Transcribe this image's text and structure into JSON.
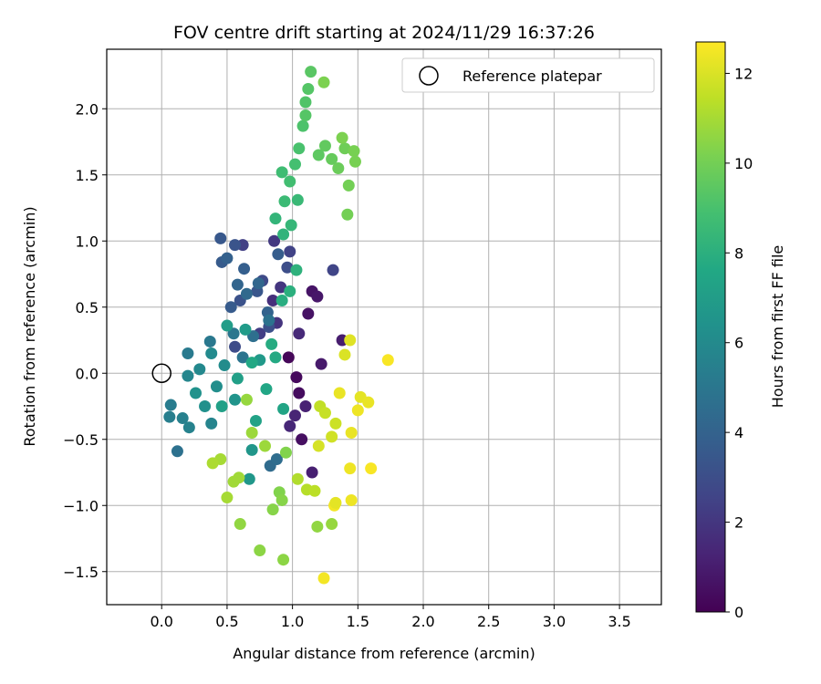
{
  "chart_data": {
    "type": "scatter",
    "title": "FOV centre drift starting at 2024/11/29 16:37:26",
    "xlabel": "Angular distance from reference (arcmin)",
    "ylabel": "Rotation from reference (arcmin)",
    "xlim": [
      -0.42,
      3.82
    ],
    "ylim": [
      -1.75,
      2.45
    ],
    "xticks": [
      0.0,
      0.5,
      1.0,
      1.5,
      2.0,
      2.5,
      3.0,
      3.5
    ],
    "xtick_labels": [
      "0.0",
      "0.5",
      "1.0",
      "1.5",
      "2.0",
      "2.5",
      "3.0",
      "3.5"
    ],
    "yticks": [
      -1.5,
      -1.0,
      -0.5,
      0.0,
      0.5,
      1.0,
      1.5,
      2.0
    ],
    "ytick_labels": [
      "−1.5",
      "−1.0",
      "−0.5",
      "0.0",
      "0.5",
      "1.0",
      "1.5",
      "2.0"
    ],
    "grid": true,
    "legend": {
      "placement": "top-right",
      "label": "Reference platepar"
    },
    "reference_point": {
      "x": 0.0,
      "y": 0.0
    },
    "colorbar": {
      "label": "Hours from first FF file",
      "min": 0,
      "max": 12.7,
      "ticks": [
        0,
        2,
        4,
        6,
        8,
        10,
        12
      ],
      "tick_labels": [
        "0",
        "2",
        "4",
        "6",
        "8",
        "10",
        "12"
      ],
      "colormap": "viridis"
    },
    "points": [
      {
        "x": 0.97,
        "y": 0.12,
        "h": 0.2
      },
      {
        "x": 1.03,
        "y": -0.03,
        "h": 0.3
      },
      {
        "x": 1.05,
        "y": -0.15,
        "h": 0.4
      },
      {
        "x": 1.07,
        "y": -0.5,
        "h": 0.5
      },
      {
        "x": 1.12,
        "y": 0.45,
        "h": 0.6
      },
      {
        "x": 1.15,
        "y": 0.62,
        "h": 0.7
      },
      {
        "x": 1.19,
        "y": 0.58,
        "h": 0.8
      },
      {
        "x": 1.22,
        "y": 0.07,
        "h": 0.9
      },
      {
        "x": 1.38,
        "y": 0.25,
        "h": 1.0
      },
      {
        "x": 1.15,
        "y": -0.75,
        "h": 1.1
      },
      {
        "x": 1.1,
        "y": -0.25,
        "h": 1.2
      },
      {
        "x": 1.02,
        "y": -0.32,
        "h": 1.3
      },
      {
        "x": 0.98,
        "y": -0.4,
        "h": 1.4
      },
      {
        "x": 1.05,
        "y": 0.3,
        "h": 1.5
      },
      {
        "x": 0.85,
        "y": 0.55,
        "h": 1.7
      },
      {
        "x": 0.88,
        "y": 0.38,
        "h": 1.9
      },
      {
        "x": 0.91,
        "y": 0.65,
        "h": 2.0
      },
      {
        "x": 0.86,
        "y": 1.0,
        "h": 2.1
      },
      {
        "x": 0.75,
        "y": 0.3,
        "h": 2.3
      },
      {
        "x": 0.62,
        "y": 0.97,
        "h": 2.4
      },
      {
        "x": 0.98,
        "y": 0.92,
        "h": 2.5
      },
      {
        "x": 1.31,
        "y": 0.78,
        "h": 2.6
      },
      {
        "x": 0.77,
        "y": 0.7,
        "h": 2.8
      },
      {
        "x": 0.56,
        "y": 0.2,
        "h": 2.9
      },
      {
        "x": 0.96,
        "y": 0.8,
        "h": 3.0
      },
      {
        "x": 0.82,
        "y": 0.35,
        "h": 3.1
      },
      {
        "x": 0.6,
        "y": 0.55,
        "h": 3.2
      },
      {
        "x": 0.56,
        "y": 0.97,
        "h": 3.3
      },
      {
        "x": 0.73,
        "y": 0.62,
        "h": 3.4
      },
      {
        "x": 0.45,
        "y": 1.02,
        "h": 3.5
      },
      {
        "x": 0.46,
        "y": 0.84,
        "h": 3.6
      },
      {
        "x": 0.53,
        "y": 0.5,
        "h": 3.6
      },
      {
        "x": 0.89,
        "y": 0.9,
        "h": 3.7
      },
      {
        "x": 0.63,
        "y": 0.79,
        "h": 3.8
      },
      {
        "x": 0.5,
        "y": 0.87,
        "h": 3.9
      },
      {
        "x": 0.81,
        "y": 0.46,
        "h": 4.0
      },
      {
        "x": 0.58,
        "y": 0.67,
        "h": 4.1
      },
      {
        "x": 0.74,
        "y": 0.68,
        "h": 4.2
      },
      {
        "x": 0.65,
        "y": 0.6,
        "h": 4.3
      },
      {
        "x": 0.83,
        "y": -0.7,
        "h": 4.4
      },
      {
        "x": 0.88,
        "y": -0.65,
        "h": 4.5
      },
      {
        "x": 0.7,
        "y": 0.28,
        "h": 4.6
      },
      {
        "x": 0.12,
        "y": -0.59,
        "h": 4.7
      },
      {
        "x": 0.82,
        "y": 0.4,
        "h": 4.8
      },
      {
        "x": 0.62,
        "y": 0.12,
        "h": 4.9
      },
      {
        "x": 0.55,
        "y": 0.3,
        "h": 5.0
      },
      {
        "x": 0.37,
        "y": 0.24,
        "h": 5.1
      },
      {
        "x": 0.2,
        "y": 0.15,
        "h": 5.2
      },
      {
        "x": 0.07,
        "y": -0.24,
        "h": 5.3
      },
      {
        "x": 0.06,
        "y": -0.33,
        "h": 5.4
      },
      {
        "x": 0.16,
        "y": -0.34,
        "h": 5.5
      },
      {
        "x": 0.21,
        "y": -0.41,
        "h": 5.6
      },
      {
        "x": 0.38,
        "y": -0.38,
        "h": 5.7
      },
      {
        "x": 0.2,
        "y": -0.02,
        "h": 5.8
      },
      {
        "x": 0.29,
        "y": 0.03,
        "h": 5.9
      },
      {
        "x": 0.38,
        "y": 0.15,
        "h": 6.0
      },
      {
        "x": 0.48,
        "y": 0.06,
        "h": 6.1
      },
      {
        "x": 0.42,
        "y": -0.1,
        "h": 6.2
      },
      {
        "x": 0.33,
        "y": -0.25,
        "h": 6.3
      },
      {
        "x": 0.26,
        "y": -0.15,
        "h": 6.4
      },
      {
        "x": 0.56,
        "y": -0.2,
        "h": 6.5
      },
      {
        "x": 0.69,
        "y": -0.58,
        "h": 6.6
      },
      {
        "x": 0.67,
        "y": -0.8,
        "h": 6.7
      },
      {
        "x": 0.75,
        "y": 0.1,
        "h": 6.8
      },
      {
        "x": 0.64,
        "y": 0.33,
        "h": 6.9
      },
      {
        "x": 0.5,
        "y": 0.36,
        "h": 7.0
      },
      {
        "x": 0.58,
        "y": -0.04,
        "h": 7.1
      },
      {
        "x": 0.46,
        "y": -0.25,
        "h": 7.2
      },
      {
        "x": 0.72,
        "y": -0.36,
        "h": 7.3
      },
      {
        "x": 0.93,
        "y": -0.27,
        "h": 7.4
      },
      {
        "x": 0.8,
        "y": -0.12,
        "h": 7.5
      },
      {
        "x": 0.69,
        "y": 0.08,
        "h": 7.6
      },
      {
        "x": 0.87,
        "y": 0.12,
        "h": 7.7
      },
      {
        "x": 0.84,
        "y": 0.22,
        "h": 7.8
      },
      {
        "x": 0.92,
        "y": 0.55,
        "h": 7.9
      },
      {
        "x": 0.98,
        "y": 0.62,
        "h": 8.0
      },
      {
        "x": 1.03,
        "y": 0.78,
        "h": 8.1
      },
      {
        "x": 0.93,
        "y": 1.05,
        "h": 8.2
      },
      {
        "x": 0.87,
        "y": 1.17,
        "h": 8.3
      },
      {
        "x": 0.99,
        "y": 1.12,
        "h": 8.4
      },
      {
        "x": 1.04,
        "y": 1.31,
        "h": 8.5
      },
      {
        "x": 0.94,
        "y": 1.3,
        "h": 8.6
      },
      {
        "x": 0.92,
        "y": 1.52,
        "h": 8.7
      },
      {
        "x": 0.98,
        "y": 1.45,
        "h": 8.8
      },
      {
        "x": 1.02,
        "y": 1.58,
        "h": 8.9
      },
      {
        "x": 1.05,
        "y": 1.7,
        "h": 9.0
      },
      {
        "x": 1.08,
        "y": 1.87,
        "h": 9.1
      },
      {
        "x": 1.1,
        "y": 2.05,
        "h": 9.2
      },
      {
        "x": 1.12,
        "y": 2.15,
        "h": 9.3
      },
      {
        "x": 1.1,
        "y": 1.95,
        "h": 9.3
      },
      {
        "x": 1.14,
        "y": 2.28,
        "h": 9.4
      },
      {
        "x": 1.2,
        "y": 1.65,
        "h": 9.5
      },
      {
        "x": 1.25,
        "y": 1.72,
        "h": 9.6
      },
      {
        "x": 1.3,
        "y": 1.62,
        "h": 9.7
      },
      {
        "x": 1.35,
        "y": 1.55,
        "h": 9.8
      },
      {
        "x": 1.4,
        "y": 1.7,
        "h": 9.9
      },
      {
        "x": 1.42,
        "y": 1.2,
        "h": 10.0
      },
      {
        "x": 1.43,
        "y": 1.42,
        "h": 10.0
      },
      {
        "x": 1.48,
        "y": 1.6,
        "h": 10.1
      },
      {
        "x": 1.47,
        "y": 1.68,
        "h": 10.1
      },
      {
        "x": 1.38,
        "y": 1.78,
        "h": 10.2
      },
      {
        "x": 1.24,
        "y": 2.2,
        "h": 10.2
      },
      {
        "x": 0.95,
        "y": -0.6,
        "h": 10.3
      },
      {
        "x": 0.9,
        "y": -0.9,
        "h": 10.3
      },
      {
        "x": 0.92,
        "y": -0.96,
        "h": 10.4
      },
      {
        "x": 0.85,
        "y": -1.03,
        "h": 10.4
      },
      {
        "x": 0.75,
        "y": -1.34,
        "h": 10.5
      },
      {
        "x": 0.93,
        "y": -1.41,
        "h": 10.5
      },
      {
        "x": 0.6,
        "y": -1.14,
        "h": 10.6
      },
      {
        "x": 1.19,
        "y": -1.16,
        "h": 10.6
      },
      {
        "x": 1.3,
        "y": -1.14,
        "h": 10.7
      },
      {
        "x": 0.65,
        "y": -0.2,
        "h": 10.7
      },
      {
        "x": 0.69,
        "y": -0.45,
        "h": 10.8
      },
      {
        "x": 0.79,
        "y": -0.55,
        "h": 10.8
      },
      {
        "x": 0.59,
        "y": -0.79,
        "h": 10.9
      },
      {
        "x": 0.55,
        "y": -0.82,
        "h": 10.9
      },
      {
        "x": 0.5,
        "y": -0.94,
        "h": 11.0
      },
      {
        "x": 0.45,
        "y": -0.65,
        "h": 11.0
      },
      {
        "x": 0.39,
        "y": -0.68,
        "h": 11.1
      },
      {
        "x": 1.04,
        "y": -0.8,
        "h": 11.2
      },
      {
        "x": 1.11,
        "y": -0.88,
        "h": 11.3
      },
      {
        "x": 1.17,
        "y": -0.89,
        "h": 11.4
      },
      {
        "x": 1.21,
        "y": -0.25,
        "h": 11.5
      },
      {
        "x": 1.25,
        "y": -0.3,
        "h": 11.6
      },
      {
        "x": 1.33,
        "y": -0.38,
        "h": 11.7
      },
      {
        "x": 1.3,
        "y": -0.48,
        "h": 11.8
      },
      {
        "x": 1.2,
        "y": -0.55,
        "h": 11.9
      },
      {
        "x": 1.4,
        "y": 0.14,
        "h": 12.0
      },
      {
        "x": 1.44,
        "y": 0.25,
        "h": 12.1
      },
      {
        "x": 1.52,
        "y": -0.18,
        "h": 12.2
      },
      {
        "x": 1.58,
        "y": -0.22,
        "h": 12.3
      },
      {
        "x": 1.45,
        "y": -0.45,
        "h": 12.3
      },
      {
        "x": 1.44,
        "y": -0.72,
        "h": 12.4
      },
      {
        "x": 1.45,
        "y": -0.96,
        "h": 12.4
      },
      {
        "x": 1.24,
        "y": -1.55,
        "h": 12.5
      },
      {
        "x": 1.73,
        "y": 0.1,
        "h": 12.6
      },
      {
        "x": 1.6,
        "y": -0.72,
        "h": 12.6
      },
      {
        "x": 1.32,
        "y": -1.0,
        "h": 12.5
      },
      {
        "x": 1.33,
        "y": -0.98,
        "h": 12.2
      },
      {
        "x": 1.36,
        "y": -0.15,
        "h": 12.3
      },
      {
        "x": 1.5,
        "y": -0.28,
        "h": 12.4
      }
    ]
  }
}
